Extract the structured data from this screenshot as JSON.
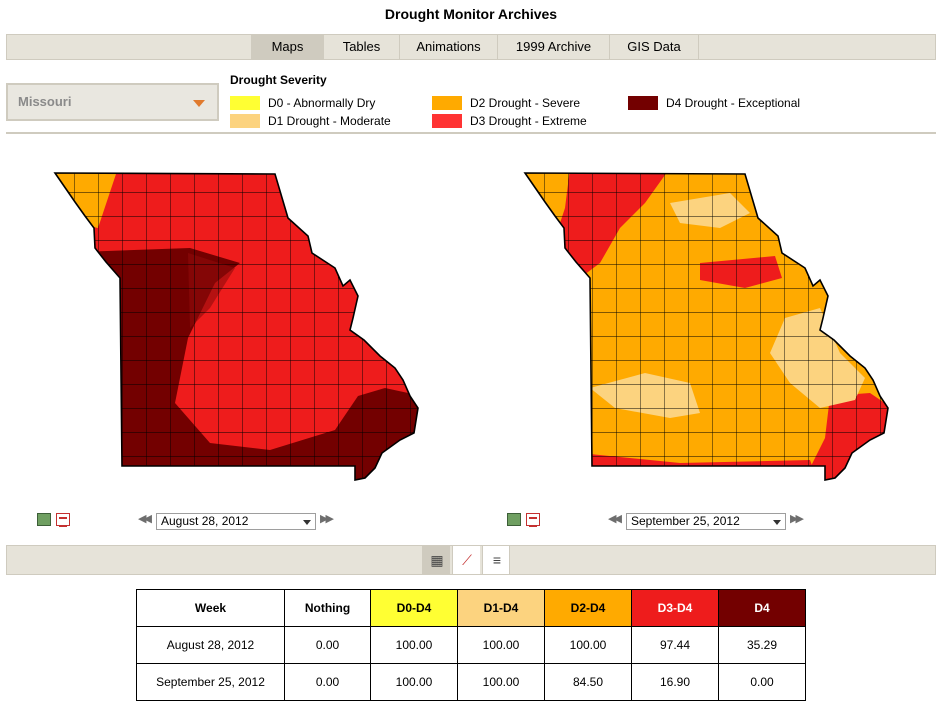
{
  "page": {
    "title": "Drought Monitor Archives"
  },
  "tabs": [
    {
      "label": "Maps",
      "active": true
    },
    {
      "label": "Tables",
      "active": false
    },
    {
      "label": "Animations",
      "active": false
    },
    {
      "label": "1999 Archive",
      "active": false
    },
    {
      "label": "GIS Data",
      "active": false
    }
  ],
  "region_select": {
    "value": "Missouri"
  },
  "legend": {
    "title": "Drought Severity",
    "items": [
      {
        "label": "D0 - Abnormally Dry",
        "color": "#ffff33"
      },
      {
        "label": "D1 Drought - Moderate",
        "color": "#fcd37f"
      },
      {
        "label": "D2 Drought - Severe",
        "color": "#ffaa00"
      },
      {
        "label": "D3 Drought - Extreme",
        "color": "#ff3333"
      },
      {
        "label": "D4 Drought - Exceptional",
        "color": "#730000"
      }
    ]
  },
  "maps": [
    {
      "date": "August 28, 2012"
    },
    {
      "date": "September 25, 2012"
    }
  ],
  "icons": {
    "image": "image-icon",
    "pdf": "pdf-icon",
    "prev": "prev-arrow-icon",
    "next": "next-arrow-icon",
    "table_view": "table-view-icon",
    "chart_view": "chart-view-icon",
    "text_view": "text-view-icon"
  },
  "table": {
    "headers": [
      {
        "label": "Week",
        "bg": "#ffffff",
        "color": "#000000"
      },
      {
        "label": "Nothing",
        "bg": "#ffffff",
        "color": "#000000"
      },
      {
        "label": "D0-D4",
        "bg": "#ffff33",
        "color": "#000000"
      },
      {
        "label": "D1-D4",
        "bg": "#fcd37f",
        "color": "#000000"
      },
      {
        "label": "D2-D4",
        "bg": "#ffaa00",
        "color": "#000000"
      },
      {
        "label": "D3-D4",
        "bg": "#ee1c1c",
        "color": "#ffffff"
      },
      {
        "label": "D4",
        "bg": "#730000",
        "color": "#ffffff"
      }
    ],
    "rows": [
      [
        "August 28, 2012",
        "0.00",
        "100.00",
        "100.00",
        "100.00",
        "97.44",
        "35.29"
      ],
      [
        "September 25, 2012",
        "0.00",
        "100.00",
        "100.00",
        "84.50",
        "16.90",
        "0.00"
      ]
    ]
  }
}
